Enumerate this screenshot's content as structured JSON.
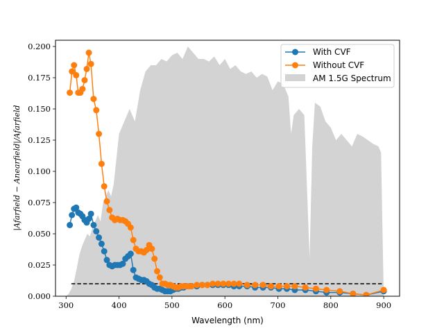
{
  "chart_data": {
    "type": "line",
    "title": "",
    "xlabel": "Wavelength (nm)",
    "ylabel": "|A_{farfield} − A_{nearfield}|/A_{farfield}",
    "ylabel_display": "|Afarfield − Anearfield|/Afarfield",
    "xlim": [
      280,
      930
    ],
    "ylim": [
      0,
      0.205
    ],
    "xticks": [
      300,
      400,
      500,
      600,
      700,
      800,
      900
    ],
    "yticks": [
      0.0,
      0.025,
      0.05,
      0.075,
      0.1,
      0.125,
      0.15,
      0.175,
      0.2
    ],
    "xtick_labels": [
      "300",
      "400",
      "500",
      "600",
      "700",
      "800",
      "900"
    ],
    "ytick_labels": [
      "0.000",
      "0.025",
      "0.050",
      "0.075",
      "0.100",
      "0.125",
      "0.150",
      "0.175",
      "0.200"
    ],
    "legend_position": "top-right",
    "threshold": {
      "value": 0.01,
      "x_range": [
        310,
        900
      ],
      "style": "dashed",
      "color": "#000000"
    },
    "spectrum": {
      "name": "AM 1.5G Spectrum",
      "color": "#d3d3d3",
      "x": [
        300,
        305,
        310,
        315,
        320,
        325,
        330,
        335,
        340,
        345,
        350,
        355,
        360,
        365,
        370,
        375,
        380,
        385,
        390,
        395,
        400,
        405,
        410,
        415,
        420,
        430,
        440,
        450,
        460,
        470,
        480,
        490,
        500,
        510,
        520,
        530,
        540,
        550,
        560,
        570,
        580,
        590,
        600,
        610,
        620,
        630,
        640,
        650,
        660,
        670,
        680,
        690,
        700,
        710,
        720,
        725,
        730,
        740,
        750,
        760,
        765,
        770,
        780,
        790,
        800,
        810,
        820,
        830,
        840,
        850,
        860,
        870,
        880,
        890,
        895,
        900
      ],
      "y": [
        0.0,
        0.002,
        0.006,
        0.012,
        0.022,
        0.033,
        0.04,
        0.045,
        0.05,
        0.048,
        0.055,
        0.06,
        0.065,
        0.06,
        0.075,
        0.08,
        0.085,
        0.08,
        0.09,
        0.11,
        0.13,
        0.135,
        0.14,
        0.145,
        0.15,
        0.14,
        0.165,
        0.18,
        0.185,
        0.185,
        0.19,
        0.188,
        0.193,
        0.195,
        0.19,
        0.2,
        0.195,
        0.19,
        0.19,
        0.188,
        0.192,
        0.185,
        0.19,
        0.182,
        0.185,
        0.18,
        0.178,
        0.18,
        0.175,
        0.178,
        0.176,
        0.165,
        0.172,
        0.17,
        0.16,
        0.13,
        0.145,
        0.15,
        0.145,
        0.03,
        0.12,
        0.155,
        0.152,
        0.14,
        0.135,
        0.125,
        0.13,
        0.125,
        0.12,
        0.13,
        0.128,
        0.125,
        0.122,
        0.12,
        0.115,
        0.0
      ]
    },
    "series": [
      {
        "name": "With CVF",
        "color": "#1f77b4",
        "x": [
          307,
          311,
          315,
          319,
          323,
          327,
          331,
          335,
          339,
          343,
          347,
          352,
          357,
          362,
          367,
          372,
          377,
          382,
          387,
          392,
          397,
          402,
          407,
          412,
          417,
          422,
          427,
          432,
          437,
          442,
          447,
          452,
          457,
          462,
          467,
          472,
          477,
          482,
          487,
          492,
          497,
          502,
          507,
          512,
          517,
          522,
          527,
          532,
          537,
          547,
          557,
          567,
          577,
          587,
          597,
          607,
          617,
          627,
          642,
          657,
          672,
          687,
          702,
          717,
          732,
          752,
          772,
          792,
          817,
          842,
          867,
          900
        ],
        "y": [
          0.057,
          0.065,
          0.07,
          0.071,
          0.067,
          0.066,
          0.064,
          0.061,
          0.059,
          0.062,
          0.066,
          0.057,
          0.052,
          0.047,
          0.042,
          0.036,
          0.029,
          0.025,
          0.024,
          0.025,
          0.025,
          0.025,
          0.026,
          0.03,
          0.032,
          0.034,
          0.021,
          0.015,
          0.014,
          0.013,
          0.013,
          0.012,
          0.01,
          0.009,
          0.007,
          0.006,
          0.006,
          0.005,
          0.004,
          0.004,
          0.004,
          0.005,
          0.006,
          0.006,
          0.007,
          0.007,
          0.008,
          0.008,
          0.008,
          0.008,
          0.009,
          0.009,
          0.009,
          0.009,
          0.009,
          0.009,
          0.008,
          0.008,
          0.008,
          0.007,
          0.007,
          0.007,
          0.006,
          0.006,
          0.005,
          0.005,
          0.004,
          0.003,
          0.003,
          0.002,
          0.001,
          0.004
        ]
      },
      {
        "name": "Without CVF",
        "color": "#ff7f0e",
        "x": [
          307,
          311,
          315,
          319,
          323,
          327,
          331,
          335,
          339,
          343,
          347,
          352,
          357,
          362,
          367,
          372,
          377,
          382,
          387,
          392,
          397,
          402,
          407,
          412,
          417,
          422,
          427,
          432,
          437,
          442,
          447,
          452,
          457,
          462,
          467,
          472,
          477,
          482,
          487,
          492,
          497,
          502,
          507,
          512,
          517,
          522,
          527,
          532,
          537,
          547,
          557,
          567,
          577,
          587,
          597,
          607,
          617,
          627,
          642,
          657,
          672,
          687,
          702,
          717,
          732,
          752,
          772,
          792,
          817,
          842,
          867,
          900
        ],
        "y": [
          0.163,
          0.18,
          0.185,
          0.177,
          0.163,
          0.163,
          0.166,
          0.173,
          0.182,
          0.195,
          0.186,
          0.158,
          0.149,
          0.13,
          0.106,
          0.088,
          0.076,
          0.069,
          0.063,
          0.061,
          0.062,
          0.061,
          0.061,
          0.06,
          0.058,
          0.055,
          0.045,
          0.038,
          0.036,
          0.036,
          0.035,
          0.037,
          0.041,
          0.038,
          0.03,
          0.02,
          0.015,
          0.01,
          0.01,
          0.009,
          0.009,
          0.008,
          0.007,
          0.007,
          0.008,
          0.008,
          0.008,
          0.008,
          0.008,
          0.009,
          0.009,
          0.009,
          0.01,
          0.01,
          0.01,
          0.01,
          0.01,
          0.01,
          0.009,
          0.009,
          0.009,
          0.008,
          0.008,
          0.008,
          0.008,
          0.007,
          0.006,
          0.005,
          0.004,
          0.002,
          0.001,
          0.005
        ]
      }
    ]
  }
}
